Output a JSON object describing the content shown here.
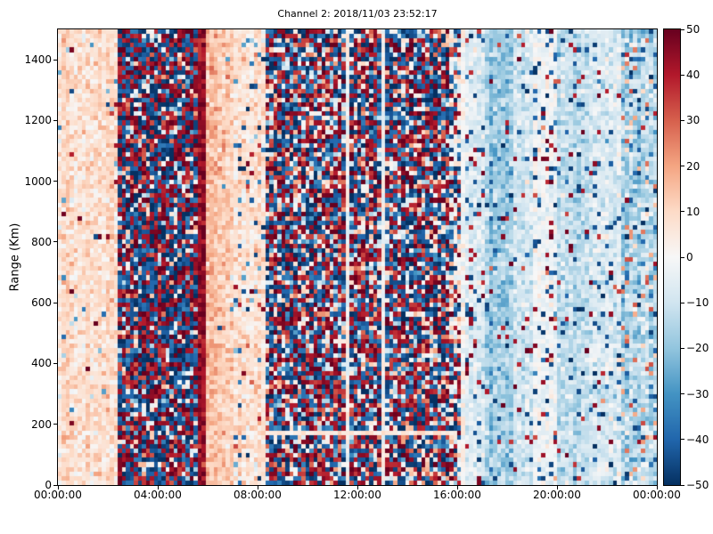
{
  "figure": {
    "background": "#ffffff",
    "axis_color": "#000000"
  },
  "chart_data": {
    "type": "heatmap",
    "title": "Channel 2: 2018/11/03 23:52:17",
    "xlabel": "",
    "ylabel": "Range (Km)",
    "x_range_hours": [
      0,
      24
    ],
    "y_range_km": [
      0,
      1500
    ],
    "grid": {
      "cols": 150,
      "rows": 100
    },
    "seed": 1337,
    "x_ticks": [
      {
        "label": "00:00:00",
        "hour": 0
      },
      {
        "label": "04:00:00",
        "hour": 4
      },
      {
        "label": "08:00:00",
        "hour": 8
      },
      {
        "label": "12:00:00",
        "hour": 12
      },
      {
        "label": "16:00:00",
        "hour": 16
      },
      {
        "label": "20:00:00",
        "hour": 20
      },
      {
        "label": "00:00:00",
        "hour": 24
      }
    ],
    "y_ticks": [
      {
        "label": "0",
        "km": 0
      },
      {
        "label": "200",
        "km": 200
      },
      {
        "label": "400",
        "km": 400
      },
      {
        "label": "600",
        "km": 600
      },
      {
        "label": "800",
        "km": 800
      },
      {
        "label": "1000",
        "km": 1000
      },
      {
        "label": "1200",
        "km": 1200
      },
      {
        "label": "1400",
        "km": 1400
      }
    ],
    "colorbar": {
      "min": -50,
      "max": 50,
      "colormap": "RdBu_r",
      "stops_low_to_high": [
        "#053061",
        "#2166ac",
        "#4393c3",
        "#92c5de",
        "#d1e5f0",
        "#f7f7f7",
        "#fddbc7",
        "#f4a582",
        "#d6604d",
        "#b2182b",
        "#67001f"
      ],
      "ticks": [
        {
          "label": "50",
          "value": 50
        },
        {
          "label": "40",
          "value": 40
        },
        {
          "label": "30",
          "value": 30
        },
        {
          "label": "20",
          "value": 20
        },
        {
          "label": "10",
          "value": 10
        },
        {
          "label": "0",
          "value": 0
        },
        {
          "label": "−10",
          "value": -10
        },
        {
          "label": "−20",
          "value": -20
        },
        {
          "label": "−30",
          "value": -30
        },
        {
          "label": "−40",
          "value": -40
        },
        {
          "label": "−50",
          "value": -50
        }
      ]
    },
    "bands": [
      {
        "desc": "light-warm-band",
        "t0": 0.0,
        "t1": 2.45,
        "mean": 8,
        "sigma": 5,
        "col_mod": 3,
        "speckles": [
          {
            "p": 0.02,
            "mean": -25,
            "spread": 10
          },
          {
            "p": 0.008,
            "mean": 45,
            "spread": 5
          }
        ]
      },
      {
        "desc": "dense-noise-morning",
        "t0": 2.45,
        "t1": 5.58,
        "dense": true,
        "p_red": 0.4,
        "p_blue": 0.44,
        "red_mean": 43,
        "red_spread": 7,
        "blue_mean": -44,
        "blue_spread": 6,
        "light_sigma": 15,
        "wash_p": 0.03
      },
      {
        "desc": "saturated-red-stripe",
        "t0": 5.58,
        "t1": 5.95,
        "mean": 44,
        "sigma": 5,
        "col_mod": 0,
        "speckles": []
      },
      {
        "desc": "salmon-after-stripe",
        "t0": 5.95,
        "t1": 7.05,
        "mean": 17,
        "mean2": 9,
        "sigma": 5,
        "col_mod": 2,
        "speckles": [
          {
            "p": 0.01,
            "mean": -30,
            "spread": 8
          }
        ]
      },
      {
        "desc": "pale-warm-blue-speckles",
        "t0": 7.05,
        "t1": 8.25,
        "mean": 7,
        "sigma": 5,
        "col_mod": 2,
        "speckles": [
          {
            "p": 0.06,
            "mean": -38,
            "spread": 10
          },
          {
            "p": 0.02,
            "mean": 42,
            "spread": 6
          }
        ]
      },
      {
        "desc": "dense-noise-midday",
        "t0": 8.25,
        "t1": 15.7,
        "dense": true,
        "p_red": 0.38,
        "p_blue": 0.38,
        "red_mean": 42,
        "red_spread": 8,
        "blue_mean": -43,
        "blue_spread": 7,
        "light_sigma": 14,
        "wash_p": 0.06
      },
      {
        "desc": "dense-noise-fading",
        "t0": 15.7,
        "t1": 16.4,
        "dense": true,
        "p_red": 0.25,
        "p_blue": 0.28,
        "red_mean": 42,
        "red_spread": 8,
        "blue_mean": -43,
        "blue_spread": 7,
        "light_sigma": 10,
        "wash_p": 0.15
      },
      {
        "desc": "pale-blue-transition",
        "t0": 16.4,
        "t1": 17.15,
        "mean": -6,
        "sigma": 5,
        "col_mod": 3,
        "speckles": [
          {
            "p": 0.07,
            "mean": 43,
            "spread": 6
          },
          {
            "p": 0.08,
            "mean": -44,
            "spread": 5
          }
        ]
      },
      {
        "desc": "darker-blue-band",
        "t0": 17.15,
        "t1": 18.2,
        "mean": -17,
        "sigma": 6,
        "col_mod": 4,
        "speckles": [
          {
            "p": 0.02,
            "mean": 43,
            "spread": 6
          },
          {
            "p": 0.03,
            "mean": -45,
            "spread": 4
          }
        ]
      },
      {
        "desc": "light-blue-stripes",
        "t0": 18.2,
        "t1": 19.1,
        "mean": -9,
        "sigma": 5,
        "col_mod": 3,
        "speckles": [
          {
            "p": 0.03,
            "mean": 43,
            "spread": 6
          },
          {
            "p": 0.04,
            "mean": -45,
            "spread": 4
          }
        ]
      },
      {
        "desc": "whitish-speckled-band",
        "t0": 19.1,
        "t1": 20.0,
        "mean": -3,
        "sigma": 4,
        "col_mod": 2,
        "speckles": [
          {
            "p": 0.07,
            "mean": 42,
            "spread": 8
          },
          {
            "p": 0.08,
            "mean": -44,
            "spread": 5
          }
        ]
      },
      {
        "desc": "medium-blue-band",
        "t0": 20.0,
        "t1": 21.45,
        "mean": -12,
        "sigma": 5,
        "col_mod": 4,
        "speckles": [
          {
            "p": 0.03,
            "mean": 42,
            "spread": 8
          },
          {
            "p": 0.05,
            "mean": -45,
            "spread": 4
          }
        ]
      },
      {
        "desc": "pale-blue-band",
        "t0": 21.45,
        "t1": 22.5,
        "mean": -8,
        "sigma": 5,
        "col_mod": 3,
        "speckles": [
          {
            "p": 0.04,
            "mean": 40,
            "spread": 8
          },
          {
            "p": 0.05,
            "mean": -44,
            "spread": 5
          }
        ]
      },
      {
        "desc": "blue-with-salmon-speckles",
        "t0": 22.5,
        "t1": 24.01,
        "mean": -15,
        "sigma": 7,
        "col_mod": 4,
        "speckles": [
          {
            "p": 0.1,
            "mean": 20,
            "spread": 12
          },
          {
            "p": 0.06,
            "mean": -42,
            "spread": 6
          }
        ]
      }
    ],
    "features": {
      "white_horizontal_line": {
        "t0": 8.3,
        "t1": 16.0,
        "km0": 170,
        "km1": 185,
        "mean": 6,
        "sigma": 3
      }
    }
  }
}
